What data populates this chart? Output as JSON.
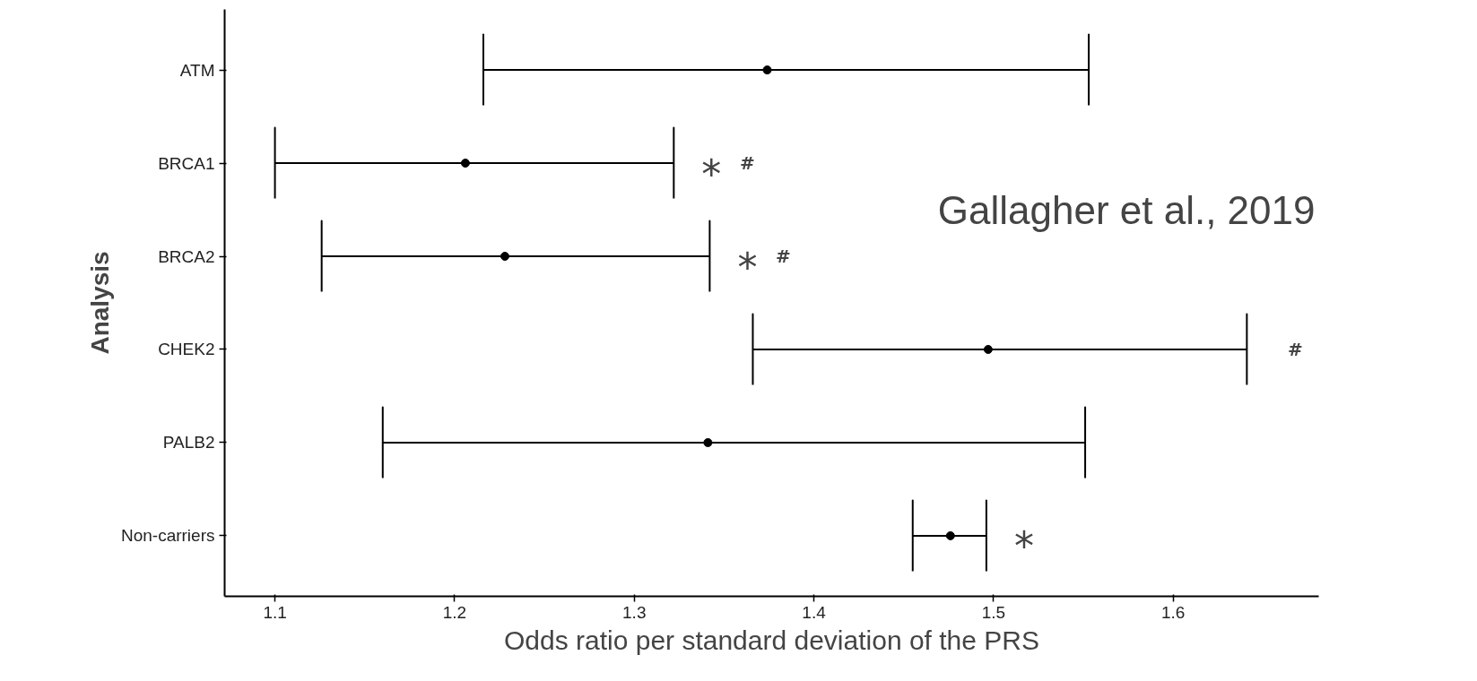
{
  "chart_data": {
    "type": "scatter",
    "orientation": "horizontal",
    "xlabel": "Odds ratio per standard deviation of the PRS",
    "ylabel": "Analysis",
    "categories": [
      "ATM",
      "BRCA1",
      "BRCA2",
      "CHEK2",
      "PALB2",
      "Non-carriers"
    ],
    "values": [
      1.374,
      1.206,
      1.228,
      1.497,
      1.341,
      1.476
    ],
    "errors": [
      [
        1.216,
        1.553
      ],
      [
        1.1,
        1.322
      ],
      [
        1.126,
        1.342
      ],
      [
        1.366,
        1.641
      ],
      [
        1.16,
        1.551
      ],
      [
        1.455,
        1.496
      ]
    ],
    "color": "#000000",
    "marker": "circle",
    "grid": false,
    "xlim": [
      1.072,
      1.681
    ],
    "xticks": [
      1.1,
      1.2,
      1.3,
      1.4,
      1.5,
      1.6
    ],
    "annotations": [
      "*",
      "#",
      "*",
      "#",
      "#",
      "*",
      "Gallagher et al., 2019"
    ]
  }
}
